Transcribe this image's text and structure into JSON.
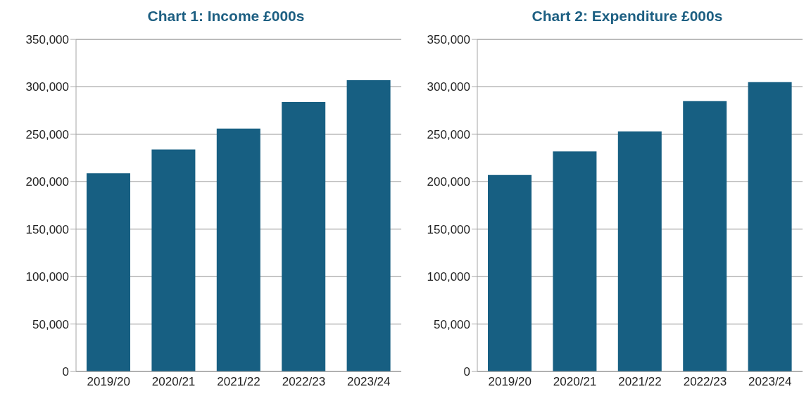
{
  "chart_data": [
    {
      "type": "bar",
      "title": "Chart 1: Income £000s",
      "categories": [
        "2019/20",
        "2020/21",
        "2021/22",
        "2022/23",
        "2023/24"
      ],
      "values": [
        209000,
        234000,
        256000,
        284000,
        307000
      ],
      "color": "#175f82",
      "ylim": [
        0,
        350000
      ],
      "yticks": [
        {
          "value": 0,
          "label": "0"
        },
        {
          "value": 50000,
          "label": "50,000"
        },
        {
          "value": 100000,
          "label": "100,000"
        },
        {
          "value": 150000,
          "label": "150,000"
        },
        {
          "value": 200000,
          "label": "200,000"
        },
        {
          "value": 250000,
          "label": "250,000"
        },
        {
          "value": 300000,
          "label": "300,000"
        },
        {
          "value": 350000,
          "label": "350,000"
        }
      ],
      "grid": "y",
      "legend": false
    },
    {
      "type": "bar",
      "title": "Chart 2: Expenditure £000s",
      "categories": [
        "2019/20",
        "2020/21",
        "2021/22",
        "2022/23",
        "2023/24"
      ],
      "values": [
        207000,
        232000,
        253000,
        285000,
        305000
      ],
      "color": "#175f82",
      "ylim": [
        0,
        350000
      ],
      "yticks": [
        {
          "value": 0,
          "label": "0"
        },
        {
          "value": 50000,
          "label": "50,000"
        },
        {
          "value": 100000,
          "label": "100,000"
        },
        {
          "value": 150000,
          "label": "150,000"
        },
        {
          "value": 200000,
          "label": "200,000"
        },
        {
          "value": 250000,
          "label": "250,000"
        },
        {
          "value": 300000,
          "label": "300,000"
        },
        {
          "value": 350000,
          "label": "350,000"
        }
      ],
      "grid": "y",
      "legend": false
    }
  ]
}
